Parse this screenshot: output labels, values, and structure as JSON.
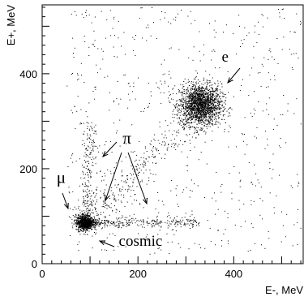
{
  "chart_data": {
    "type": "scatter",
    "title": "",
    "xlabel": "E-, MeV",
    "ylabel": "E+, MeV",
    "xlim": [
      0,
      545
    ],
    "ylim": [
      0,
      545
    ],
    "x_ticks": [
      0,
      200,
      400
    ],
    "y_ticks": [
      0,
      200,
      400
    ],
    "x_tick_labels": [
      "0",
      "200",
      "400"
    ],
    "y_tick_labels": [
      "0",
      "200",
      "400"
    ],
    "grid": false,
    "point_color": "#000000",
    "clusters": [
      {
        "label": "e",
        "center": [
          330,
          335
        ],
        "spread": [
          22,
          22
        ],
        "count": 1900,
        "kind": "gaussian"
      },
      {
        "label": "μ",
        "center": [
          88,
          87
        ],
        "spread": [
          9,
          8
        ],
        "count": 850,
        "kind": "gaussian"
      },
      {
        "label": "π",
        "from": [
          95,
          88
        ],
        "to": [
          330,
          88
        ],
        "y_spread": 5,
        "count": 320,
        "kind": "band"
      },
      {
        "label": "π",
        "from": [
          88,
          100
        ],
        "to": [
          100,
          300
        ],
        "x_spread": 8,
        "count": 200,
        "kind": "band"
      },
      {
        "label": "",
        "region": [
          [
            50,
            540
          ],
          [
            20,
            540
          ]
        ],
        "count": 650,
        "kind": "uniform"
      },
      {
        "label": "",
        "from": [
          100,
          100
        ],
        "to": [
          320,
          320
        ],
        "spread": 16,
        "count": 280,
        "kind": "band"
      }
    ],
    "annotations": [
      {
        "text": "e",
        "at": [
          375,
          425
        ]
      },
      {
        "text": "π",
        "at": [
          168,
          253
        ]
      },
      {
        "text": "μ",
        "at": [
          30,
          170
        ]
      },
      {
        "text": "cosmic",
        "at": [
          160,
          38
        ]
      }
    ]
  }
}
